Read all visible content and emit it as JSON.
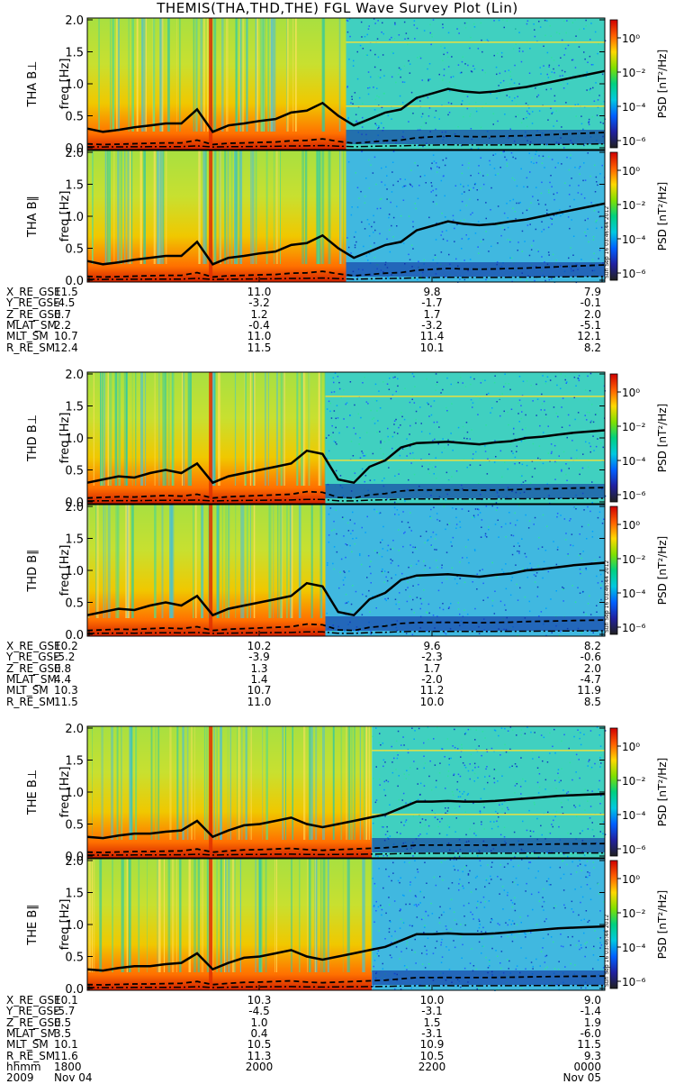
{
  "chart_data": {
    "type": "heatmap",
    "title": "THEMIS(THA,THD,THE) FGL Wave Survey Plot (Lin)",
    "stamp": "Sun Sep 16 03:46:44 2012",
    "yticks": [
      "0.0",
      "0.5",
      "1.0",
      "1.5",
      "2.0"
    ],
    "ylim": [
      0.0,
      2.0
    ],
    "yunit": "freq [Hz]",
    "colorbar": {
      "label": "PSD [nT²/Hz]",
      "ticks": [
        "10⁰",
        "10⁻²",
        "10⁻⁴",
        "10⁻⁶"
      ],
      "colors": [
        "#d00000",
        "#ff6000",
        "#ffd800",
        "#80e000",
        "#00d080",
        "#00c8e0",
        "#0060ff",
        "#2020a0",
        "#202020"
      ]
    },
    "probes": [
      {
        "panels": [
          "THA B⊥",
          "THA B∥"
        ],
        "transition_frac": 0.5,
        "fce_line": [
          0.3,
          0.25,
          0.28,
          0.32,
          0.35,
          0.38,
          0.38,
          0.6,
          0.25,
          0.35,
          0.38,
          0.42,
          0.45,
          0.55,
          0.58,
          0.7,
          0.5,
          0.35,
          0.45,
          0.55,
          0.6,
          0.78,
          0.85,
          0.92,
          0.88,
          0.86,
          0.88,
          0.92,
          0.95,
          1.0,
          1.05,
          1.1,
          1.15,
          1.2
        ],
        "ephem": {
          "X_RE_GSE": [
            "11.5",
            "11.0",
            "9.8",
            "7.9"
          ],
          "Y_RE_GSE": [
            "-4.5",
            "-3.2",
            "-1.7",
            "-0.1"
          ],
          "Z_RE_GSE": [
            "0.7",
            "1.2",
            "1.7",
            "2.0"
          ],
          "MLAT_SM": [
            "2.2",
            "-0.4",
            "-3.2",
            "-5.1"
          ],
          "MLT_SM": [
            "10.7",
            "11.0",
            "11.4",
            "12.1"
          ],
          "R_RE_SM": [
            "12.4",
            "11.5",
            "10.1",
            "8.2"
          ]
        }
      },
      {
        "panels": [
          "THD B⊥",
          "THD B∥"
        ],
        "transition_frac": 0.46,
        "fce_line": [
          0.3,
          0.35,
          0.4,
          0.38,
          0.45,
          0.5,
          0.45,
          0.6,
          0.3,
          0.4,
          0.45,
          0.5,
          0.55,
          0.6,
          0.8,
          0.75,
          0.35,
          0.3,
          0.55,
          0.65,
          0.85,
          0.92,
          0.93,
          0.94,
          0.92,
          0.9,
          0.93,
          0.95,
          1.0,
          1.02,
          1.05,
          1.08,
          1.1,
          1.12
        ],
        "ephem": {
          "X_RE_GSE": [
            "10.2",
            "10.2",
            "9.6",
            "8.2"
          ],
          "Y_RE_GSE": [
            "-5.2",
            "-3.9",
            "-2.3",
            "-0.6"
          ],
          "Z_RE_GSE": [
            "0.8",
            "1.3",
            "1.7",
            "2.0"
          ],
          "MLAT_SM": [
            "4.4",
            "1.4",
            "-2.0",
            "-4.7"
          ],
          "MLT_SM": [
            "10.3",
            "10.7",
            "11.2",
            "11.9"
          ],
          "R_RE_SM": [
            "11.5",
            "11.0",
            "10.0",
            "8.5"
          ]
        }
      },
      {
        "panels": [
          "THE B⊥",
          "THE B∥"
        ],
        "transition_frac": 0.55,
        "fce_line": [
          0.3,
          0.28,
          0.32,
          0.35,
          0.35,
          0.38,
          0.4,
          0.55,
          0.3,
          0.4,
          0.48,
          0.5,
          0.55,
          0.6,
          0.5,
          0.45,
          0.5,
          0.55,
          0.6,
          0.65,
          0.75,
          0.85,
          0.85,
          0.86,
          0.85,
          0.85,
          0.86,
          0.88,
          0.9,
          0.92,
          0.94,
          0.95,
          0.96,
          0.97
        ],
        "ephem": {
          "X_RE_GSE": [
            "10.1",
            "10.3",
            "10.0",
            "9.0"
          ],
          "Y_RE_GSE": [
            "-5.7",
            "-4.5",
            "-3.1",
            "-1.4"
          ],
          "Z_RE_GSE": [
            "0.5",
            "1.0",
            "1.5",
            "1.9"
          ],
          "MLAT_SM": [
            "3.5",
            "0.4",
            "-3.1",
            "-6.0"
          ],
          "MLT_SM": [
            "10.1",
            "10.5",
            "10.9",
            "11.5"
          ],
          "R_RE_SM": [
            "11.6",
            "11.3",
            "10.5",
            "9.3"
          ]
        }
      }
    ],
    "ephem_labels": [
      "X_RE_GSE",
      "Y_RE_GSE",
      "Z_RE_GSE",
      "MLAT_SM",
      "MLT_SM",
      "R_RE_SM"
    ],
    "time_row": {
      "label": "hhmm",
      "values": [
        "1800",
        "2000",
        "2200",
        "0000"
      ]
    },
    "date_row": {
      "label": "2009",
      "start": "Nov 04",
      "end": "Nov 05"
    }
  }
}
